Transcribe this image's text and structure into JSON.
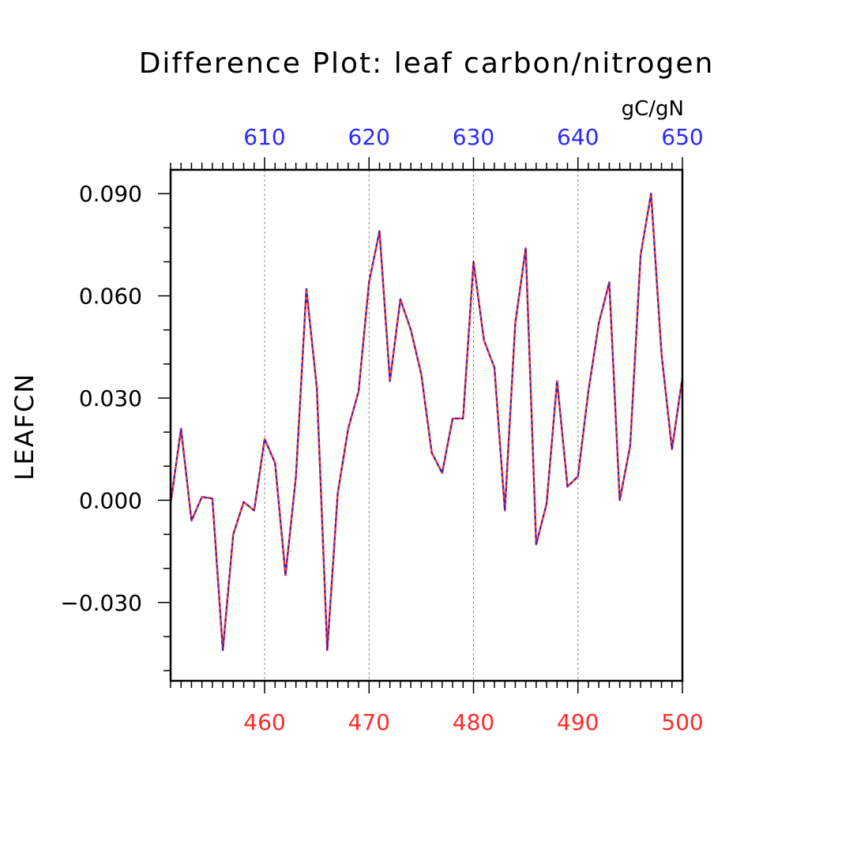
{
  "chart_data": {
    "type": "line",
    "title": "Difference Plot: leaf carbon/nitrogen",
    "units": "gC/gN",
    "ylabel": "LEAFCN",
    "xlabel": "",
    "colors": {
      "bottom_axis": "#ff2a2a",
      "top_axis": "#2a2aff",
      "line_primary": "#ff3333",
      "line_secondary": "#2222cc"
    },
    "grid": "dashed vertical at major x ticks",
    "x_bottom": {
      "ticks": [
        460,
        470,
        480,
        490,
        500
      ],
      "tick_labels": [
        "460",
        "470",
        "480",
        "490",
        "500"
      ],
      "range": [
        451,
        500
      ]
    },
    "x_top": {
      "ticks": [
        610,
        620,
        630,
        640,
        650
      ],
      "tick_labels": [
        "610",
        "620",
        "630",
        "640",
        "650"
      ],
      "range": [
        601,
        650
      ]
    },
    "y": {
      "ticks": [
        -0.03,
        0.0,
        0.03,
        0.06,
        0.09
      ],
      "tick_labels": [
        "−0.030",
        "0.000",
        "0.030",
        "0.060",
        "0.090"
      ],
      "range": [
        -0.053,
        0.097
      ]
    },
    "x": [
      451,
      452,
      453,
      454,
      455,
      456,
      457,
      458,
      459,
      460,
      461,
      462,
      463,
      464,
      465,
      466,
      467,
      468,
      469,
      470,
      471,
      472,
      473,
      474,
      475,
      476,
      477,
      478,
      479,
      480,
      481,
      482,
      483,
      484,
      485,
      486,
      487,
      488,
      489,
      490,
      491,
      492,
      493,
      494,
      495,
      496,
      497,
      498,
      499,
      500
    ],
    "series": [
      {
        "values": [
          -0.001,
          0.021,
          -0.006,
          0.001,
          0.0005,
          -0.044,
          -0.01,
          -0.0005,
          -0.003,
          0.018,
          0.011,
          -0.022,
          0.007,
          0.062,
          0.033,
          -0.044,
          0.002,
          0.021,
          0.032,
          0.064,
          0.079,
          0.035,
          0.059,
          0.05,
          0.037,
          0.014,
          0.008,
          0.024,
          0.024,
          0.07,
          0.047,
          0.039,
          -0.003,
          0.052,
          0.074,
          -0.013,
          -0.001,
          0.035,
          0.004,
          0.007,
          0.032,
          0.052,
          0.064,
          0.0,
          0.016,
          0.072,
          0.09,
          0.043,
          0.015,
          0.036
        ]
      }
    ]
  }
}
